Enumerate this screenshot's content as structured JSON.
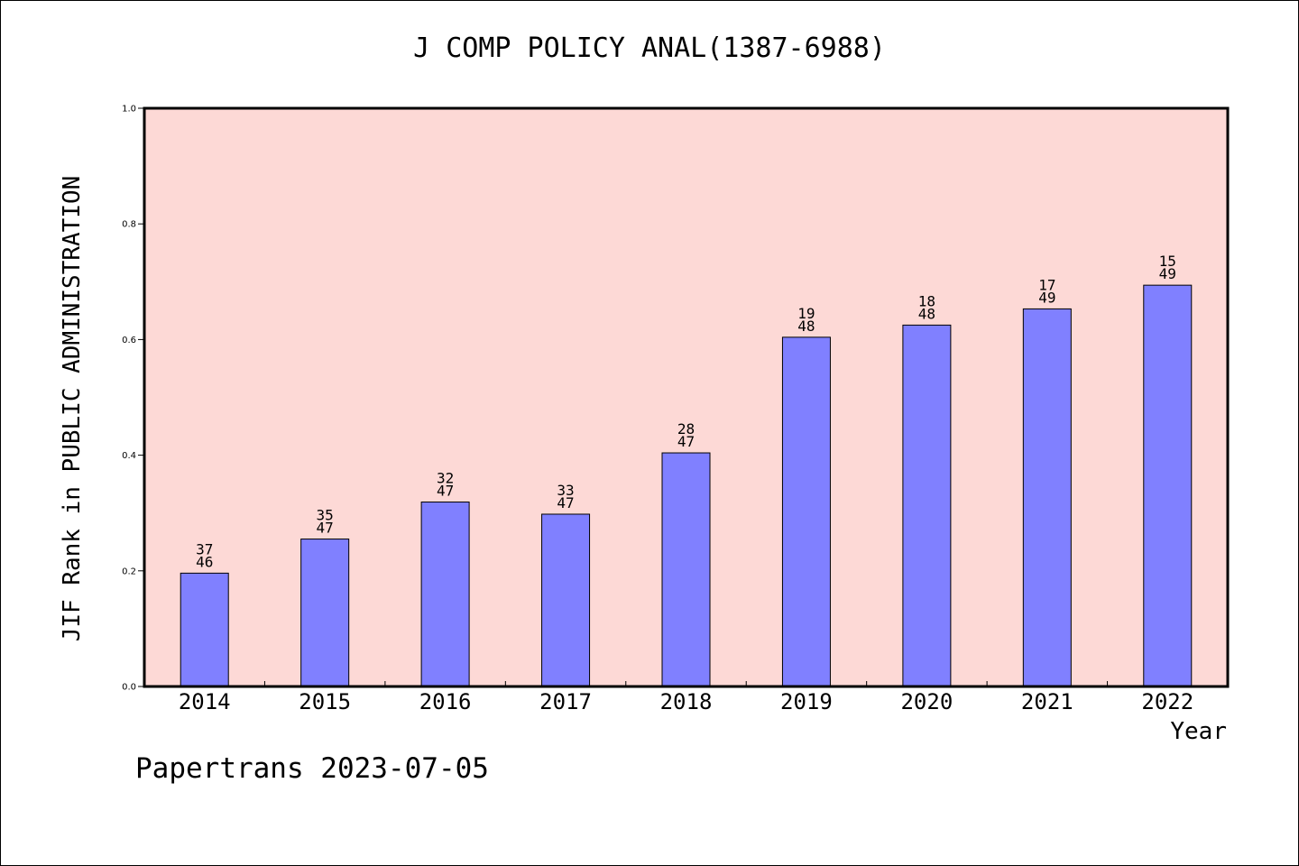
{
  "title": "J COMP POLICY ANAL(1387-6988)",
  "footer": "Papertrans 2023-07-05",
  "colors": {
    "plot_background": "#fdd9d6",
    "bar": "#8080ff",
    "axis": "#000000"
  },
  "chart_data": {
    "type": "bar",
    "title": "J COMP POLICY ANAL(1387-6988)",
    "xlabel": "Year",
    "ylabel": "JIF Rank in PUBLIC ADMINISTRATION",
    "ylim": [
      0,
      1.0
    ],
    "yticks": [
      "0.0",
      "0.2",
      "0.4",
      "0.6",
      "0.8",
      "1.0"
    ],
    "categories": [
      "2014",
      "2015",
      "2016",
      "2017",
      "2018",
      "2019",
      "2020",
      "2021",
      "2022"
    ],
    "values": [
      0.196,
      0.255,
      0.319,
      0.298,
      0.404,
      0.604,
      0.625,
      0.653,
      0.694
    ],
    "ranks": [
      "37",
      "35",
      "32",
      "33",
      "28",
      "19",
      "18",
      "17",
      "15"
    ],
    "totals": [
      "46",
      "47",
      "47",
      "47",
      "47",
      "48",
      "48",
      "49",
      "49"
    ],
    "grid": false,
    "legend": "none"
  }
}
